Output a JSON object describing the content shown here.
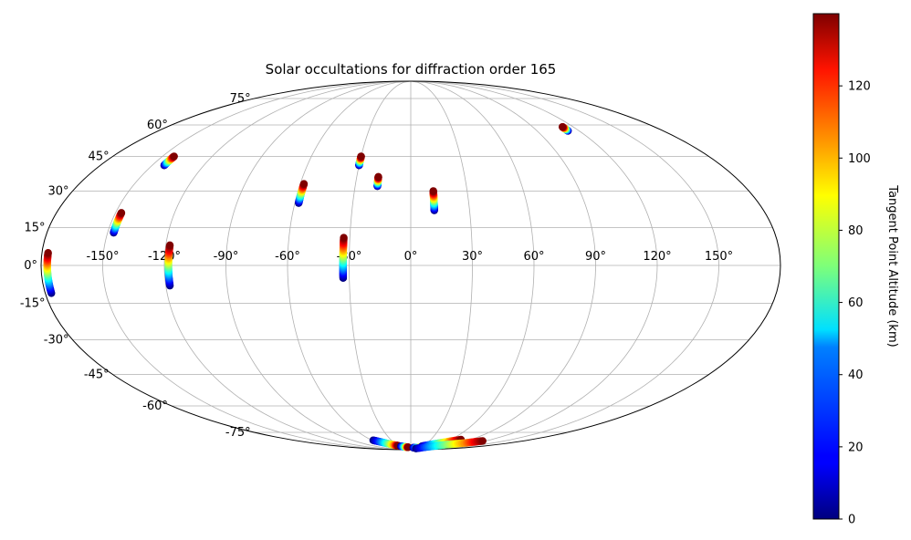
{
  "chart_data": {
    "type": "scatter",
    "projection": "mollweide",
    "title": "Solar occultations for diffraction order 165",
    "grid": true,
    "x_ticks": [
      "-150°",
      "-120°",
      "-90°",
      "-60°",
      "-30°",
      "0°",
      "30°",
      "60°",
      "90°",
      "120°",
      "150°"
    ],
    "y_ticks": [
      "75°",
      "60°",
      "45°",
      "30°",
      "15°",
      "0°",
      "-15°",
      "-30°",
      "-45°",
      "-60°",
      "-75°"
    ],
    "colorbar": {
      "label": "Tangent Point Altitude (km)",
      "colormap": "jet",
      "range": [
        0,
        140
      ],
      "ticks": [
        "0",
        "20",
        "40",
        "60",
        "80",
        "100",
        "120"
      ]
    },
    "series": [
      {
        "lon": -177,
        "lat": [
          -11,
          -7,
          -3,
          1,
          5
        ]
      },
      {
        "lon": -147,
        "lat": [
          13,
          15,
          17,
          19,
          21
        ]
      },
      {
        "lon": -143,
        "lat": [
          41,
          42,
          43,
          44,
          45
        ]
      },
      {
        "lon": -118,
        "lat": [
          -8,
          -4,
          0,
          4,
          8
        ]
      },
      {
        "lon": -58,
        "lat": [
          25,
          27,
          29,
          31,
          33
        ]
      },
      {
        "lon": -33,
        "lat": [
          -5,
          -1,
          3,
          7,
          11
        ]
      },
      {
        "lon": -30,
        "lat": [
          41,
          42,
          43,
          44,
          45
        ]
      },
      {
        "lon": -18,
        "lat": [
          32,
          33,
          34,
          35,
          36
        ]
      },
      {
        "lon": 12,
        "lat": [
          22,
          24,
          26,
          28,
          30
        ]
      },
      {
        "lon": 112,
        "lat": [
          57,
          57.5,
          58,
          58.5,
          59
        ]
      },
      {
        "lon": [
          -58,
          -50,
          -42,
          -35,
          -30
        ],
        "lat": [
          -80.5,
          -82,
          -83.5,
          -84.5,
          -85
        ]
      },
      {
        "lon": [
          -25,
          -18,
          -12,
          -8
        ],
        "lat": [
          -85.5,
          -86,
          -86.5,
          -86.5
        ]
      },
      {
        "lon": [
          8,
          20,
          30,
          38
        ],
        "lat": [
          -87,
          -87,
          -86.5,
          -86
        ]
      },
      {
        "lon": [
          28,
          45,
          62,
          75
        ],
        "lat": [
          -85.5,
          -83.5,
          -81.5,
          -80
        ]
      },
      {
        "lon": [
          22,
          50,
          75,
          100,
          115
        ],
        "lat": [
          -88,
          -86,
          -84,
          -82.5,
          -81
        ]
      }
    ]
  }
}
